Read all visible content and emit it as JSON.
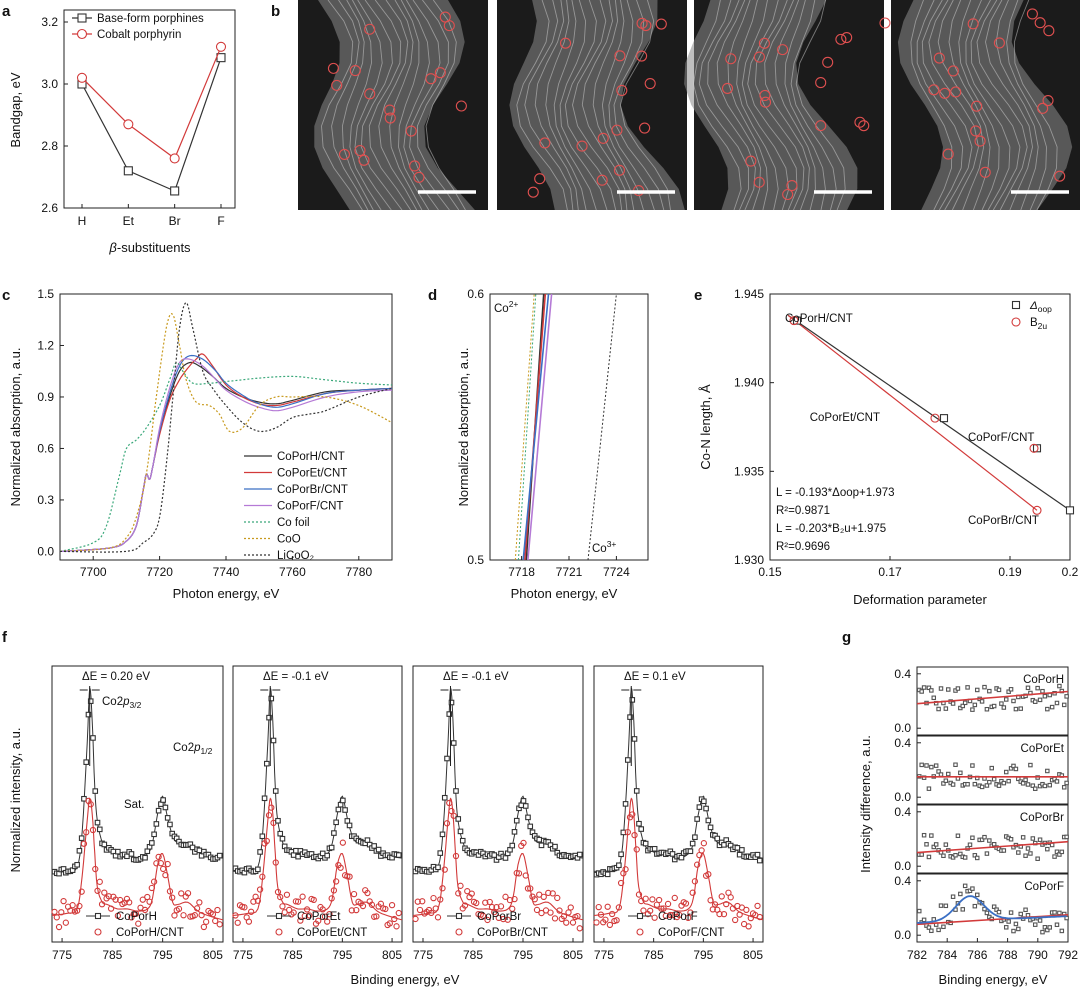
{
  "panels": {
    "a": {
      "label": "a"
    },
    "b": {
      "label": "b",
      "images": [
        "STEM image 1",
        "STEM image 2",
        "STEM image 3",
        "STEM image 4"
      ]
    },
    "c": {
      "label": "c"
    },
    "d": {
      "label": "d"
    },
    "e": {
      "label": "e"
    },
    "f": {
      "label": "f"
    },
    "g": {
      "label": "g"
    }
  },
  "colors": {
    "black": "#333333",
    "red": "#d23a3a",
    "blue": "#3a6fc4",
    "violet": "#b57ad6",
    "teal": "#3aa87a",
    "gold": "#c89a1e",
    "dark": "#222222"
  },
  "chart_data": [
    {
      "id": "a",
      "type": "line",
      "categories": [
        "H",
        "Et",
        "Br",
        "F"
      ],
      "xlabel": "β-substituents",
      "ylabel": "Bandgap, eV",
      "ylim": [
        2.6,
        3.2
      ],
      "yticks": [
        "2.6",
        "2.8",
        "3.0",
        "3.2"
      ],
      "legend": "top-left",
      "series": [
        {
          "name": "Base-form porphines",
          "marker": "square",
          "color": "#333333",
          "values": [
            3.0,
            2.72,
            2.655,
            3.085
          ]
        },
        {
          "name": "Cobalt porphyrin",
          "marker": "circle",
          "color": "#d23a3a",
          "values": [
            3.02,
            2.87,
            2.76,
            3.12
          ]
        }
      ]
    },
    {
      "id": "c",
      "type": "line",
      "xlabel": "Photon energy, eV",
      "ylabel": "Normalized absorption, a.u.",
      "xlim": [
        7690,
        7790
      ],
      "ylim": [
        0.0,
        1.5
      ],
      "xticks": [
        "7700",
        "7720",
        "7740",
        "7760",
        "7780"
      ],
      "yticks": [
        "0.0",
        "0.3",
        "0.6",
        "0.9",
        "1.2",
        "1.5"
      ],
      "legend": "bottom-right",
      "series": [
        {
          "name": "CoPorH/CNT",
          "style": "solid",
          "color": "#333333",
          "x": [
            7690,
            7705,
            7710,
            7713,
            7715,
            7716,
            7717,
            7718,
            7720,
            7723,
            7726,
            7729,
            7732,
            7736,
            7740,
            7745,
            7750,
            7755,
            7760,
            7770,
            7780,
            7790
          ],
          "y": [
            0.0,
            0.02,
            0.06,
            0.15,
            0.35,
            0.45,
            0.42,
            0.5,
            0.7,
            0.9,
            1.05,
            1.1,
            1.08,
            1.02,
            0.95,
            0.9,
            0.87,
            0.86,
            0.88,
            0.93,
            0.94,
            0.95
          ]
        },
        {
          "name": "CoPorEt/CNT",
          "style": "solid",
          "color": "#d23a3a",
          "x": [
            7690,
            7705,
            7710,
            7713,
            7715,
            7716,
            7717,
            7718,
            7720,
            7723,
            7726,
            7729,
            7731,
            7733,
            7736,
            7740,
            7745,
            7750,
            7755,
            7760,
            7770,
            7780,
            7790
          ],
          "y": [
            0.0,
            0.02,
            0.06,
            0.15,
            0.35,
            0.45,
            0.42,
            0.5,
            0.68,
            0.88,
            1.0,
            1.08,
            1.12,
            1.15,
            1.08,
            0.97,
            0.9,
            0.86,
            0.85,
            0.87,
            0.92,
            0.94,
            0.95
          ]
        },
        {
          "name": "CoPorBr/CNT",
          "style": "solid",
          "color": "#3a6fc4",
          "x": [
            7690,
            7705,
            7710,
            7713,
            7715,
            7716,
            7717,
            7718,
            7720,
            7723,
            7726,
            7729,
            7733,
            7737,
            7740,
            7745,
            7750,
            7755,
            7760,
            7770,
            7780,
            7790
          ],
          "y": [
            0.0,
            0.02,
            0.06,
            0.15,
            0.35,
            0.45,
            0.42,
            0.5,
            0.7,
            0.92,
            1.08,
            1.14,
            1.12,
            1.05,
            0.98,
            0.91,
            0.86,
            0.84,
            0.86,
            0.92,
            0.94,
            0.95
          ]
        },
        {
          "name": "CoPorF/CNT",
          "style": "solid",
          "color": "#b57ad6",
          "x": [
            7690,
            7705,
            7710,
            7713,
            7715,
            7716,
            7717,
            7718,
            7720,
            7723,
            7726,
            7729,
            7733,
            7737,
            7740,
            7745,
            7750,
            7755,
            7760,
            7770,
            7780,
            7790
          ],
          "y": [
            0.0,
            0.02,
            0.06,
            0.15,
            0.35,
            0.45,
            0.42,
            0.5,
            0.72,
            0.95,
            1.1,
            1.12,
            1.08,
            1.0,
            0.94,
            0.88,
            0.84,
            0.82,
            0.84,
            0.9,
            0.93,
            0.94
          ]
        },
        {
          "name": "Co foil",
          "style": "dotted",
          "color": "#3aa87a",
          "x": [
            7690,
            7700,
            7704,
            7708,
            7710,
            7713,
            7716,
            7720,
            7723,
            7725,
            7727,
            7730,
            7735,
            7740,
            7745,
            7750,
            7760,
            7770,
            7780,
            7790
          ],
          "y": [
            0.0,
            0.05,
            0.15,
            0.45,
            0.6,
            0.65,
            0.72,
            0.85,
            1.0,
            1.1,
            1.05,
            0.98,
            0.98,
            0.99,
            1.0,
            1.01,
            1.02,
            1.0,
            0.98,
            0.97
          ]
        },
        {
          "name": "CoO",
          "style": "dotted",
          "color": "#c89a1e",
          "x": [
            7690,
            7705,
            7710,
            7713,
            7716,
            7719,
            7722,
            7724,
            7726,
            7728,
            7731,
            7735,
            7738,
            7741,
            7745,
            7750,
            7755,
            7760,
            7770,
            7780,
            7790
          ],
          "y": [
            0.0,
            0.02,
            0.08,
            0.2,
            0.45,
            0.9,
            1.3,
            1.38,
            1.2,
            1.0,
            0.87,
            0.85,
            0.8,
            0.7,
            0.72,
            0.85,
            0.9,
            0.9,
            0.9,
            0.85,
            0.75
          ]
        },
        {
          "name": "LiCoO₂",
          "style": "dotted",
          "color": "#333333",
          "x": [
            7690,
            7710,
            7715,
            7718,
            7720,
            7722,
            7724,
            7726,
            7728,
            7730,
            7733,
            7736,
            7740,
            7745,
            7750,
            7755,
            7760,
            7765,
            7770,
            7780,
            7790
          ],
          "y": [
            0.0,
            0.0,
            0.05,
            0.1,
            0.2,
            0.5,
            0.9,
            1.3,
            1.45,
            1.3,
            1.05,
            0.95,
            0.85,
            0.75,
            0.7,
            0.72,
            0.78,
            0.8,
            0.82,
            0.9,
            0.95
          ]
        }
      ]
    },
    {
      "id": "d",
      "type": "line",
      "xlabel": "Photon energy, eV",
      "ylabel": "Normalized absorption, a.u.",
      "xlim": [
        7716,
        7726
      ],
      "ylim": [
        0.5,
        0.6
      ],
      "xticks": [
        "7718",
        "7721",
        "7724"
      ],
      "yticks": [
        "0.5",
        "0.6"
      ],
      "annotations": [
        "Co²⁺",
        "Co³⁺"
      ],
      "series": [
        {
          "name": "CoPorH/CNT",
          "style": "solid",
          "color": "#333333",
          "x": [
            7718.3,
            7719.4
          ],
          "y": [
            0.5,
            0.6
          ]
        },
        {
          "name": "CoPorEt/CNT",
          "style": "solid",
          "color": "#d23a3a",
          "x": [
            7718.2,
            7719.5
          ],
          "y": [
            0.5,
            0.6
          ]
        },
        {
          "name": "CoPorBr/CNT",
          "style": "solid",
          "color": "#3a6fc4",
          "x": [
            7718.1,
            7719.7
          ],
          "y": [
            0.5,
            0.6
          ]
        },
        {
          "name": "CoPorF/CNT",
          "style": "solid",
          "color": "#b57ad6",
          "x": [
            7718.4,
            7719.9
          ],
          "y": [
            0.5,
            0.6
          ]
        },
        {
          "name": "CoO",
          "style": "dotted",
          "color": "#c89a1e",
          "x": [
            7717.6,
            7718.8
          ],
          "y": [
            0.5,
            0.6
          ]
        },
        {
          "name": "Co foil",
          "style": "dotted",
          "color": "#3aa87a",
          "x": [
            7717.8,
            7718.9
          ],
          "y": [
            0.5,
            0.6
          ]
        },
        {
          "name": "LiCoO₂",
          "style": "dotted",
          "color": "#333333",
          "x": [
            7722.2,
            7724.0
          ],
          "y": [
            0.5,
            0.6
          ]
        }
      ]
    },
    {
      "id": "e",
      "type": "scatter",
      "xlabel": "Deformation parameter",
      "ylabel": "Co-N length, Å",
      "xlim": [
        0.15,
        0.2
      ],
      "ylim": [
        1.93,
        1.945
      ],
      "xticks": [
        "0.15",
        "0.17",
        "0.19",
        "0.2"
      ],
      "yticks": [
        "1.930",
        "1.935",
        "1.940",
        "1.945"
      ],
      "legend": "top-right",
      "point_labels": [
        "CoPorH/CNT",
        "CoPorEt/CNT",
        "CoPorF/CNT",
        "CoPorBr/CNT"
      ],
      "series": [
        {
          "name": "Δoop",
          "marker": "square",
          "color": "#333333",
          "x": [
            0.1545,
            0.179,
            0.1945,
            0.2
          ],
          "y": [
            1.9435,
            1.938,
            1.9363,
            1.9328
          ]
        },
        {
          "name": "B2u",
          "marker": "circle",
          "color": "#d23a3a",
          "x": [
            0.154,
            0.1775,
            0.194,
            0.1945
          ],
          "y": [
            1.9435,
            1.938,
            1.9363,
            1.9328
          ]
        }
      ],
      "fit_lines": [
        {
          "color": "#333333",
          "x": [
            0.153,
            0.2
          ],
          "y": [
            1.9438,
            1.9328
          ]
        },
        {
          "color": "#d23a3a",
          "x": [
            0.153,
            0.1945
          ],
          "y": [
            1.9438,
            1.9328
          ]
        }
      ],
      "equations": [
        "L = -0.193*Δoop+1.973",
        "R²=0.9871",
        "L = -0.203*B₂u+1.975",
        "R²=0.9696"
      ]
    },
    {
      "id": "f",
      "type": "line",
      "xlabel": "Binding energy, eV",
      "ylabel": "Normalized intensity, a.u.",
      "xlim": [
        773,
        807
      ],
      "xticks": [
        "775",
        "785",
        "795",
        "805"
      ],
      "subplots": [
        {
          "delta": "ΔE = 0.20 eV",
          "legend": [
            "CoPorH",
            "CoPorH/CNT"
          ],
          "extra_labels": [
            "Co2p3/2",
            "Co2p1/2",
            "Sat."
          ]
        },
        {
          "delta": "ΔE = -0.1 eV",
          "legend": [
            "CoPorEt",
            "CoPorEt/CNT"
          ]
        },
        {
          "delta": "ΔE = -0.1 eV",
          "legend": [
            "CoPorBr",
            "CoPorBr/CNT"
          ]
        },
        {
          "delta": "ΔE = 0.1 eV",
          "legend": [
            "CoPorF",
            "CoPorF/CNT"
          ]
        }
      ],
      "series_shape": {
        "x": [
          773,
          776,
          778,
          779,
          780,
          780.5,
          781,
          781.5,
          782,
          783,
          784,
          786,
          788,
          790,
          792,
          793,
          794,
          795,
          796,
          797,
          798,
          800,
          802,
          804,
          807
        ],
        "black": [
          0.12,
          0.12,
          0.14,
          0.3,
          0.7,
          0.95,
          0.8,
          0.5,
          0.35,
          0.25,
          0.22,
          0.2,
          0.2,
          0.18,
          0.2,
          0.25,
          0.38,
          0.46,
          0.36,
          0.28,
          0.25,
          0.25,
          0.21,
          0.19,
          0.18
        ],
        "red": [
          -0.08,
          -0.07,
          -0.05,
          0.1,
          0.35,
          0.45,
          0.38,
          0.2,
          0.05,
          -0.02,
          -0.03,
          -0.05,
          -0.05,
          -0.06,
          -0.05,
          0.0,
          0.15,
          0.2,
          0.1,
          -0.02,
          -0.03,
          -0.02,
          -0.06,
          -0.08,
          -0.1
        ]
      }
    },
    {
      "id": "g",
      "type": "scatter",
      "xlabel": "Binding energy, eV",
      "ylabel": "Intensity difference, a.u.",
      "xlim": [
        782,
        792
      ],
      "ylim": [
        -0.05,
        0.45
      ],
      "xticks": [
        "782",
        "784",
        "786",
        "788",
        "790",
        "792"
      ],
      "yticks": [
        "0.0",
        "0.2",
        "0.4"
      ],
      "subplots": [
        {
          "name": "CoPorH",
          "fit_line": [
            0.18,
            0.27
          ],
          "level": 0.22
        },
        {
          "name": "CoPorEt",
          "fit_line": [
            0.15,
            0.15
          ],
          "level": 0.15
        },
        {
          "name": "CoPorBr",
          "fit_line": [
            0.1,
            0.18
          ],
          "level": 0.14
        },
        {
          "name": "CoPorF",
          "fit_line": [
            0.08,
            0.15
          ],
          "level": 0.12,
          "gaussian": {
            "center": 785.5,
            "amplitude": 0.18,
            "baseline": 0.11
          }
        }
      ]
    }
  ]
}
